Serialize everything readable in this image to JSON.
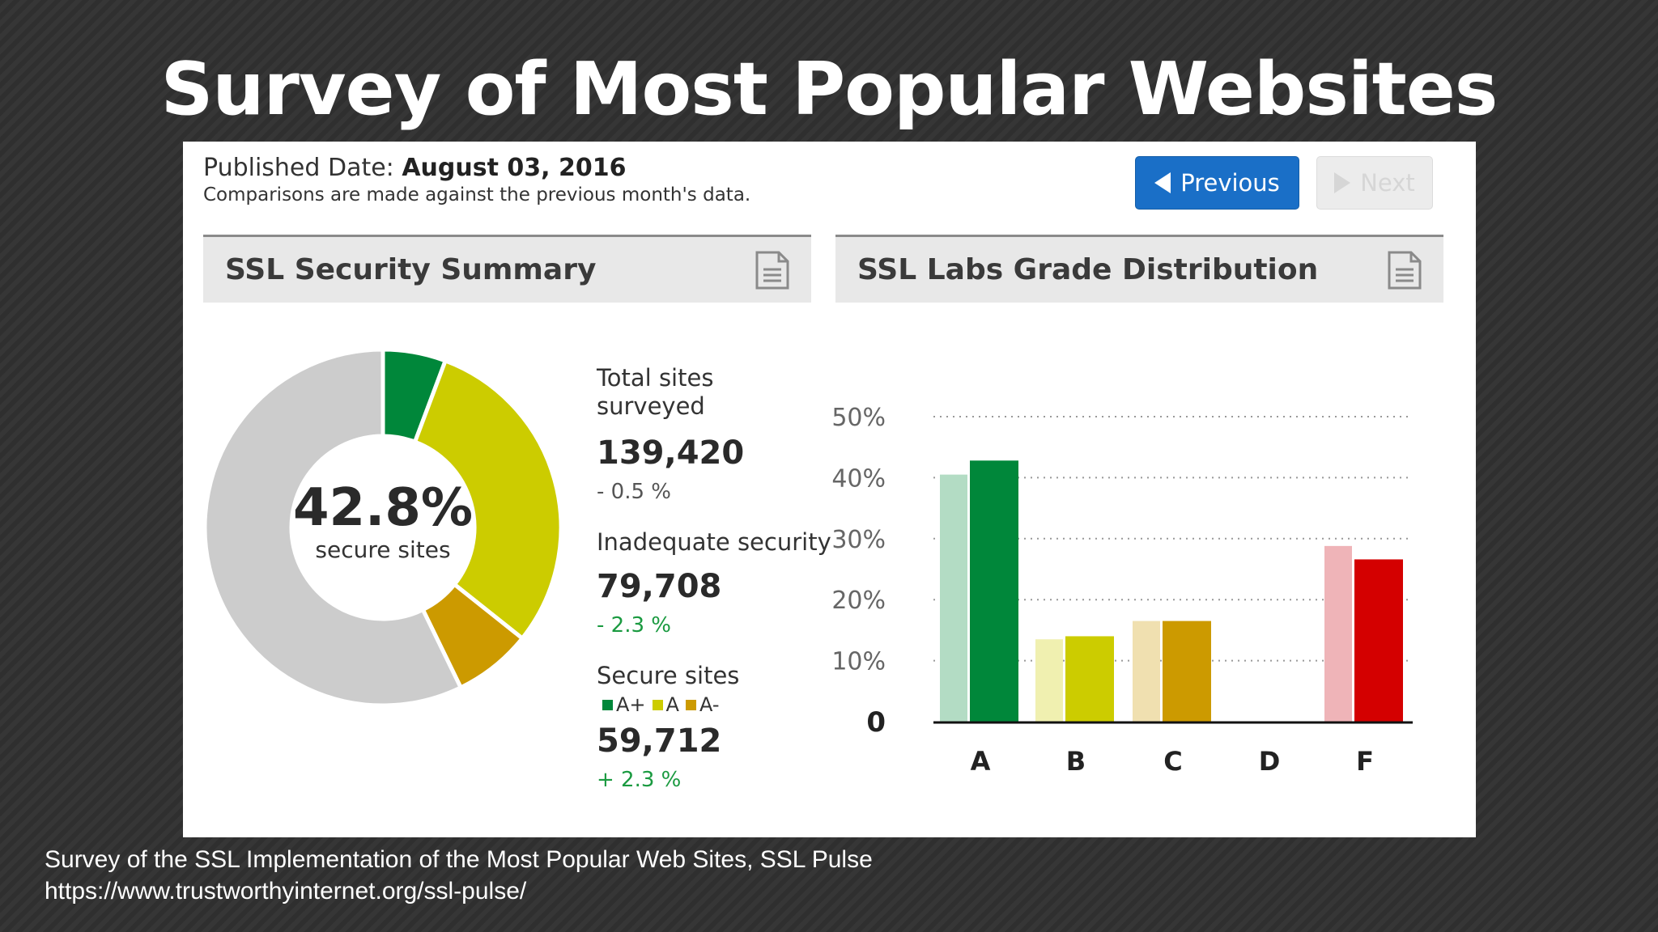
{
  "slide": {
    "title": "Survey of Most Popular Websites",
    "source_line1": "Survey of the SSL Implementation of the Most Popular Web Sites, SSL Pulse",
    "source_line2": "https://www.trustworthyinternet.org/ssl-pulse/"
  },
  "panel": {
    "published_label": "Published Date:",
    "published_date": "August 03, 2016",
    "comparison_note": "Comparisons are made against the previous month's data.",
    "previous_label": "Previous",
    "next_label": "Next"
  },
  "summary": {
    "header": "SSL Security Summary",
    "center_value": "42.8%",
    "center_label": "secure sites",
    "total_label_1": "Total sites",
    "total_label_2": "surveyed",
    "total_value": "139,420",
    "total_change": "- 0.5 %",
    "inadequate_label": "Inadequate security",
    "inadequate_value": "79,708",
    "inadequate_change": "- 2.3 %",
    "secure_label": "Secure sites",
    "legend": [
      {
        "label": "A+",
        "color": "#00873a"
      },
      {
        "label": "A",
        "color": "#cccc00"
      },
      {
        "label": "A-",
        "color": "#cc9a00"
      }
    ],
    "secure_value": "59,712",
    "secure_change": "+ 2.3 %",
    "colors": {
      "negative_neutral": "#555555",
      "positive": "#1a9a40"
    }
  },
  "grade": {
    "header": "SSL Labs Grade Distribution"
  },
  "chart_data": [
    {
      "type": "pie",
      "title": "SSL Security Summary",
      "series": [
        {
          "label": "A+",
          "value": 5.7,
          "color": "#00873a"
        },
        {
          "label": "A",
          "value": 30.0,
          "color": "#cccc00"
        },
        {
          "label": "A-",
          "value": 7.1,
          "color": "#cc9a00"
        },
        {
          "label": "Inadequate security",
          "value": 57.2,
          "color": "#cccccc"
        }
      ]
    },
    {
      "type": "bar",
      "title": "SSL Labs Grade Distribution",
      "categories": [
        "A",
        "B",
        "C",
        "D",
        "F"
      ],
      "series": [
        {
          "values": [
            40.5,
            13.5,
            16.5,
            0,
            28.8
          ],
          "colors": [
            "#b3dcc4",
            "#f0f0b0",
            "#f0e0b0",
            "#f0c8c8",
            "#efb4b8"
          ]
        },
        {
          "values": [
            42.8,
            14.0,
            16.5,
            0,
            26.6
          ],
          "colors": [
            "#00873a",
            "#cccc00",
            "#cc9a00",
            "#999999",
            "#d40000"
          ]
        }
      ],
      "y_ticks": [
        "0",
        "10%",
        "20%",
        "30%",
        "40%",
        "50%"
      ],
      "ylim": [
        0,
        50
      ],
      "grid": true
    }
  ]
}
